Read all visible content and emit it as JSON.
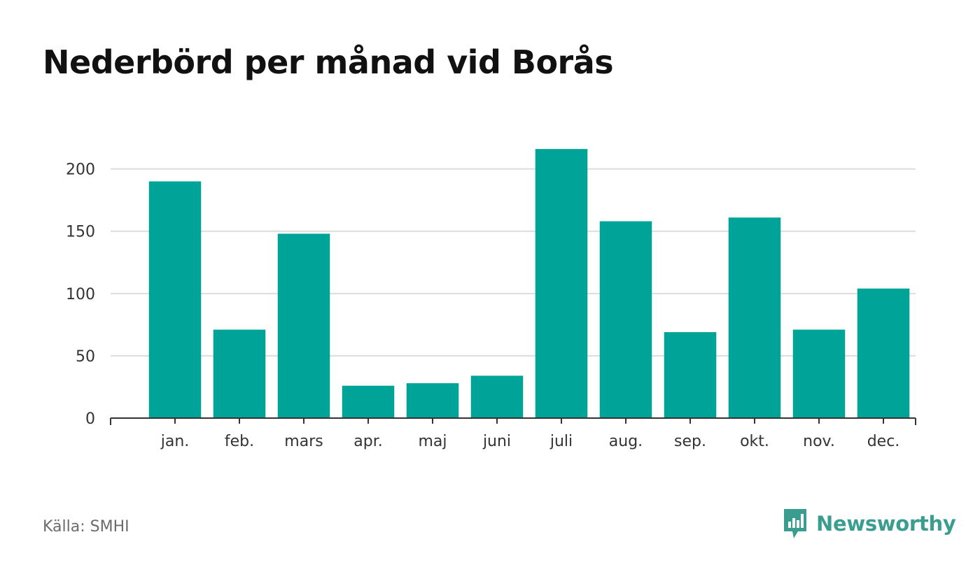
{
  "chart_data": {
    "type": "bar",
    "title": "Nederbörd per månad vid Borås",
    "categories": [
      "jan.",
      "feb.",
      "mars",
      "apr.",
      "maj",
      "juni",
      "juli",
      "aug.",
      "sep.",
      "okt.",
      "nov.",
      "dec."
    ],
    "values": [
      190,
      71,
      148,
      26,
      28,
      34,
      216,
      158,
      69,
      161,
      71,
      104
    ],
    "ylim": [
      0,
      220
    ],
    "yticks": [
      0,
      50,
      100,
      150,
      200
    ],
    "xlabel": "",
    "ylabel": "",
    "grid": "horizontal",
    "legend": "none",
    "bar_color": "#00a398"
  },
  "footer": {
    "source": "Källa: SMHI",
    "brand": "Newsworthy",
    "brand_color": "#3a9d8f",
    "brand_icon": "newsworthy-logo-icon"
  }
}
